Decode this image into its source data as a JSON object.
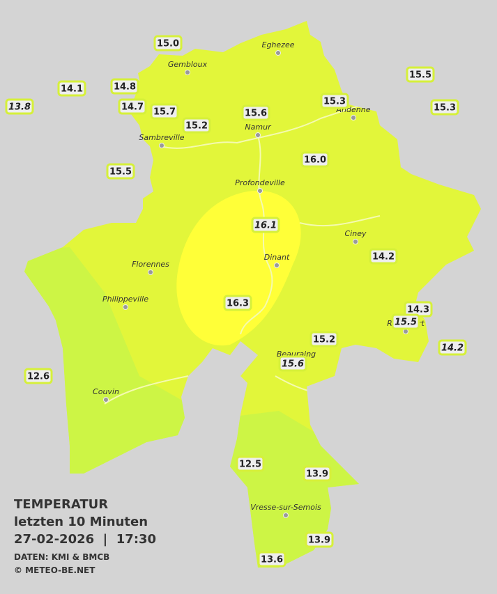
{
  "title": {
    "line1": "TEMPERATUR",
    "line2": "letzten 10 Minuten",
    "line3": "27-02-2026  |  17:30",
    "source": "DATEN: KMI & BMCB",
    "credit": "© METEO-BE.NET"
  },
  "cities": [
    "Eghezee",
    "Gembloux",
    "Andenne",
    "Namur",
    "Sambreville",
    "Profondeville",
    "Ciney",
    "Dinant",
    "Florennes",
    "Philippeville",
    "Rochefort",
    "Beauraing",
    "Couvin",
    "Vresse-sur-Semois"
  ],
  "stations": [
    {
      "label": "15.0"
    },
    {
      "label": "14.1"
    },
    {
      "label": "14.8"
    },
    {
      "label": "13.8",
      "italic": true
    },
    {
      "label": "14.7"
    },
    {
      "label": "15.7"
    },
    {
      "label": "15.2"
    },
    {
      "label": "15.6"
    },
    {
      "label": "15.3"
    },
    {
      "label": "15.5"
    },
    {
      "label": "15.3"
    },
    {
      "label": "15.5"
    },
    {
      "label": "16.0"
    },
    {
      "label": "16.1",
      "italic": true
    },
    {
      "label": "14.2"
    },
    {
      "label": "16.3"
    },
    {
      "label": "14.3"
    },
    {
      "label": "15.5",
      "italic": true
    },
    {
      "label": "14.2",
      "italic": true
    },
    {
      "label": "15.2"
    },
    {
      "label": "15.6",
      "italic": true
    },
    {
      "label": "12.6"
    },
    {
      "label": "12.5"
    },
    {
      "label": "13.9"
    },
    {
      "label": "13.9"
    },
    {
      "label": "13.6"
    }
  ]
}
